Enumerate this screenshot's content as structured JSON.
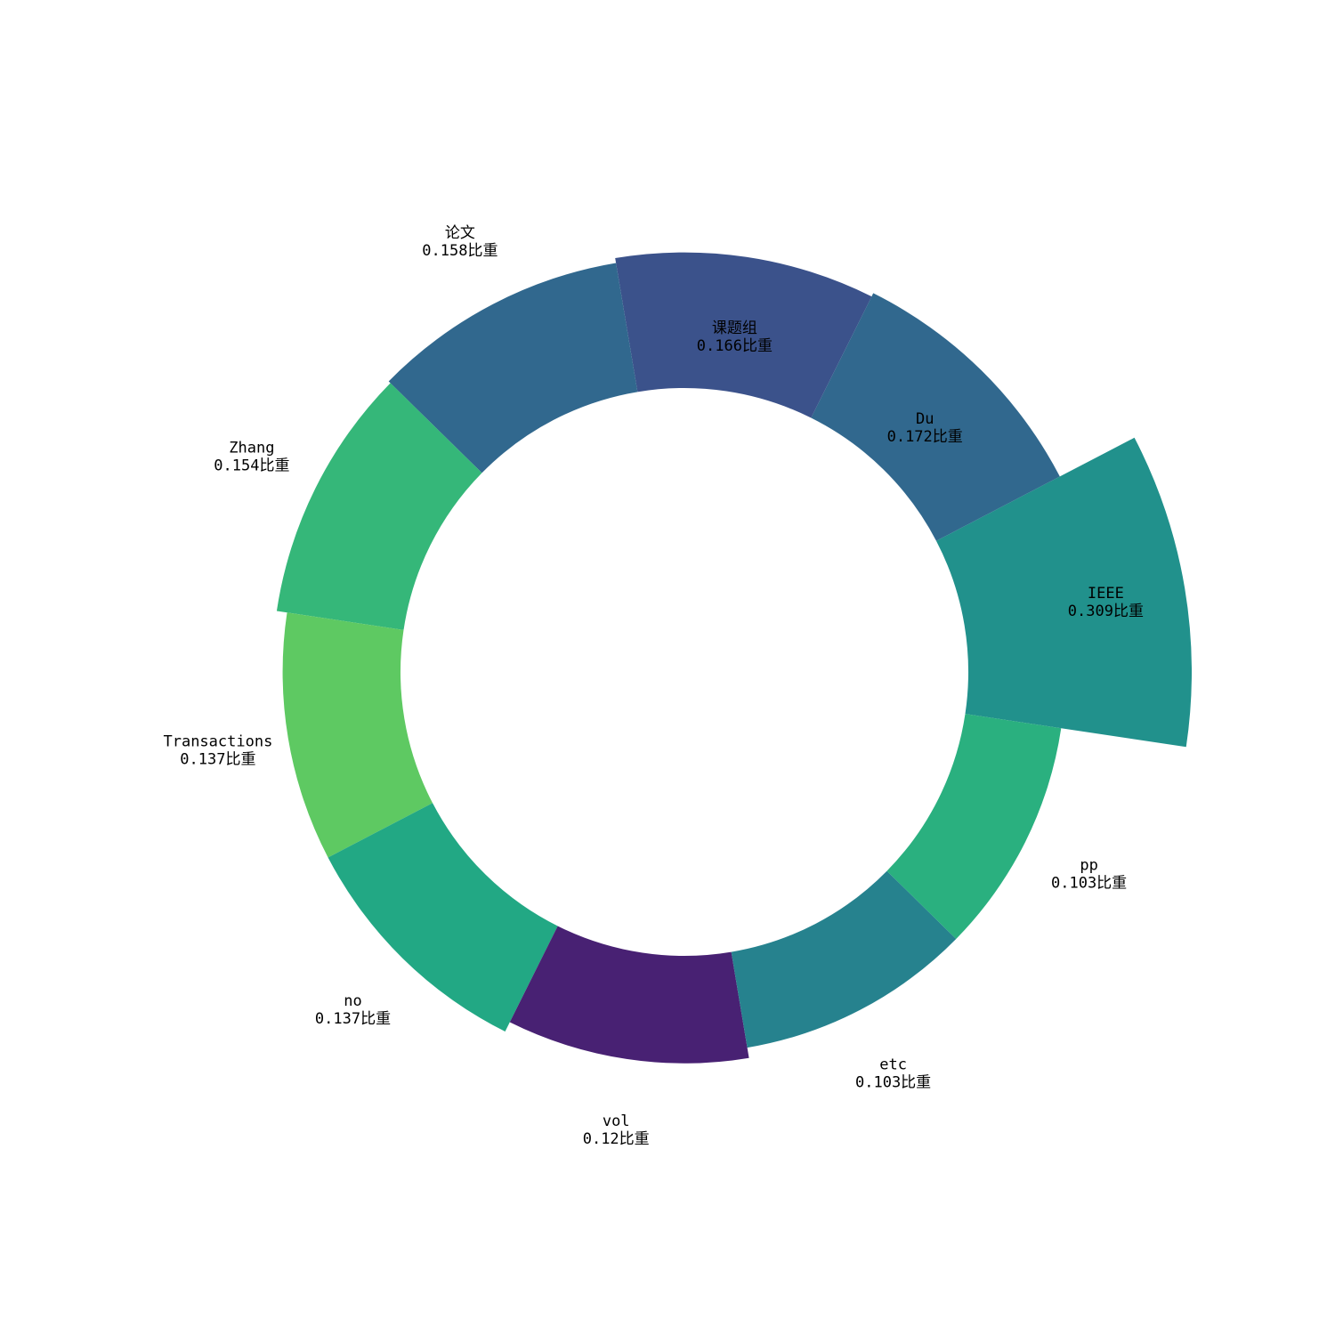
{
  "chart_data": {
    "type": "bar",
    "subtype": "polar-ring",
    "title": "",
    "value_suffix": "比重",
    "categories": [
      "IEEE",
      "Du",
      "课题组",
      "论文",
      "Zhang",
      "Transactions",
      "no",
      "vol",
      "etc",
      "pp"
    ],
    "values": [
      0.309,
      0.172,
      0.166,
      0.158,
      0.154,
      0.137,
      0.137,
      0.12,
      0.103,
      0.103
    ],
    "colors": [
      "#21918c",
      "#31688e",
      "#3b528b",
      "#31688e",
      "#35b779",
      "#5ec962",
      "#22a884",
      "#482173",
      "#26828e",
      "#2ab07f"
    ],
    "grid": false,
    "legend": "none"
  }
}
